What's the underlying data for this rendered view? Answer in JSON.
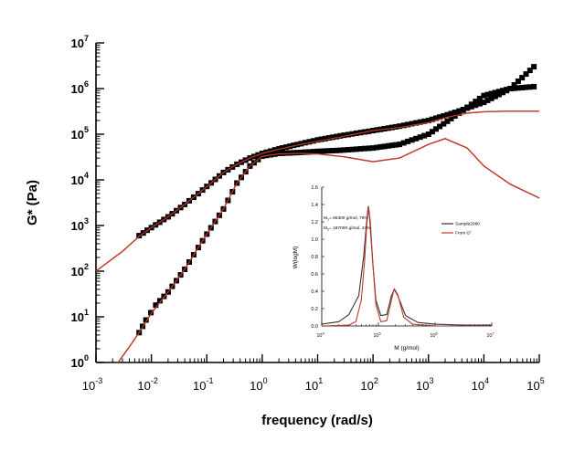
{
  "chart_data": [
    {
      "type": "scatter",
      "xlabel": "frequency (rad/s)",
      "ylabel": "G* (Pa)",
      "xscale": "log",
      "yscale": "log",
      "xlim": [
        0.001,
        100000
      ],
      "ylim": [
        1,
        10000000
      ],
      "x_ticks": [
        {
          "base": "10",
          "exp": "-3",
          "value": 0.001
        },
        {
          "base": "10",
          "exp": "-2",
          "value": 0.01
        },
        {
          "base": "10",
          "exp": "-1",
          "value": 0.1
        },
        {
          "base": "10",
          "exp": "0",
          "value": 1
        },
        {
          "base": "10",
          "exp": "1",
          "value": 10
        },
        {
          "base": "10",
          "exp": "2",
          "value": 100
        },
        {
          "base": "10",
          "exp": "3",
          "value": 1000
        },
        {
          "base": "10",
          "exp": "4",
          "value": 10000
        },
        {
          "base": "10",
          "exp": "5",
          "value": 100000
        }
      ],
      "y_ticks": [
        {
          "base": "10",
          "exp": "0",
          "value": 1
        },
        {
          "base": "10",
          "exp": "1",
          "value": 10
        },
        {
          "base": "10",
          "exp": "2",
          "value": 100
        },
        {
          "base": "10",
          "exp": "3",
          "value": 1000
        },
        {
          "base": "10",
          "exp": "4",
          "value": 10000
        },
        {
          "base": "10",
          "exp": "5",
          "value": 100000
        },
        {
          "base": "10",
          "exp": "6",
          "value": 1000000
        },
        {
          "base": "10",
          "exp": "7",
          "value": 10000000
        }
      ],
      "marker_color": "#000000",
      "fit_color": "#c0392b",
      "series": [
        {
          "kind": "markers",
          "points": [
            [
              0.006,
              600
            ],
            [
              0.01,
              900
            ],
            [
              0.02,
              1550
            ],
            [
              0.04,
              2900
            ],
            [
              0.07,
              5000
            ],
            [
              0.12,
              8600
            ],
            [
              0.2,
              14500
            ],
            [
              0.35,
              22000
            ],
            [
              0.6,
              30000
            ],
            [
              1,
              38000
            ],
            [
              2,
              48000
            ],
            [
              5,
              62000
            ],
            [
              10,
              75000
            ],
            [
              30,
              95000
            ],
            [
              100,
              120000
            ],
            [
              300,
              150000
            ],
            [
              1000,
              200000
            ],
            [
              3000,
              300000
            ],
            [
              10000,
              500000
            ],
            [
              30000,
              1000000
            ],
            [
              80000,
              3000000
            ]
          ]
        },
        {
          "kind": "markers",
          "points": [
            [
              0.006,
              4.5
            ],
            [
              0.008,
              8.5
            ],
            [
              0.012,
              18
            ],
            [
              0.02,
              35
            ],
            [
              0.04,
              110
            ],
            [
              0.07,
              330
            ],
            [
              0.1,
              650
            ],
            [
              0.2,
              2300
            ],
            [
              0.35,
              8500
            ],
            [
              0.6,
              20000
            ],
            [
              1,
              33000
            ],
            [
              2,
              38000
            ],
            [
              5,
              40000
            ],
            [
              10,
              42000
            ],
            [
              30,
              45000
            ],
            [
              100,
              50000
            ],
            [
              300,
              60000
            ],
            [
              1000,
              100000
            ],
            [
              3000,
              250000
            ],
            [
              10000,
              700000
            ],
            [
              30000,
              1000000
            ],
            [
              80000,
              1100000
            ]
          ]
        },
        {
          "kind": "line",
          "points": [
            [
              0.001,
              100
            ],
            [
              0.003,
              270
            ],
            [
              0.006,
              580
            ],
            [
              0.01,
              900
            ],
            [
              0.02,
              1550
            ],
            [
              0.04,
              2900
            ],
            [
              0.07,
              5000
            ],
            [
              0.12,
              8600
            ],
            [
              0.2,
              14500
            ],
            [
              0.35,
              22000
            ],
            [
              0.6,
              30000
            ],
            [
              1,
              38000
            ],
            [
              2,
              47000
            ],
            [
              5,
              60000
            ],
            [
              10,
              70000
            ],
            [
              30,
              90000
            ],
            [
              100,
              120000
            ],
            [
              300,
              140000
            ],
            [
              1000,
              180000
            ],
            [
              2000,
              230000
            ],
            [
              5000,
              290000
            ],
            [
              10000,
              310000
            ],
            [
              30000,
              320000
            ],
            [
              100000,
              320000
            ]
          ]
        },
        {
          "kind": "line",
          "points": [
            [
              0.0025,
              1
            ],
            [
              0.004,
              2.2
            ],
            [
              0.006,
              4.5
            ],
            [
              0.01,
              12
            ],
            [
              0.02,
              35
            ],
            [
              0.04,
              110
            ],
            [
              0.07,
              330
            ],
            [
              0.1,
              650
            ],
            [
              0.2,
              2300
            ],
            [
              0.35,
              8500
            ],
            [
              0.6,
              20000
            ],
            [
              1,
              33000
            ],
            [
              2,
              37000
            ],
            [
              5,
              38000
            ],
            [
              10,
              37000
            ],
            [
              30,
              32000
            ],
            [
              100,
              25000
            ],
            [
              300,
              30000
            ],
            [
              1000,
              60000
            ],
            [
              2000,
              80000
            ],
            [
              5000,
              50000
            ],
            [
              10000,
              20000
            ],
            [
              30000,
              8000
            ],
            [
              100000,
              4000
            ]
          ]
        }
      ]
    },
    {
      "type": "line",
      "xlabel": "M (g/mol)",
      "ylabel": "W(logM)",
      "xscale": "log",
      "xlim": [
        10000,
        10000000
      ],
      "ylim": [
        0,
        1.6
      ],
      "x_ticks": [
        {
          "base": "10",
          "exp": "4",
          "value": 10000
        },
        {
          "base": "10",
          "exp": "5",
          "value": 100000
        },
        {
          "base": "10",
          "exp": "6",
          "value": 1000000
        },
        {
          "base": "10",
          "exp": "7",
          "value": 10000000
        }
      ],
      "y_ticks": [
        "0.0",
        "0.2",
        "0.4",
        "0.6",
        "0.8",
        "1.0",
        "1.2",
        "1.4",
        "1.6"
      ],
      "annotations": [
        "M",
        "= 66300 g/mol, 76%",
        "M",
        "= 187000 g/mol, 24%"
      ],
      "annotation_subscripts": [
        "1",
        "2"
      ],
      "legend_position": "right",
      "series": [
        {
          "name": "Sample2080",
          "color": "#333333",
          "points": [
            [
              10000,
              0.02
            ],
            [
              20000,
              0.05
            ],
            [
              30000,
              0.13
            ],
            [
              45000,
              0.35
            ],
            [
              55000,
              0.8
            ],
            [
              62000,
              1.2
            ],
            [
              66000,
              1.37
            ],
            [
              70000,
              1.25
            ],
            [
              78000,
              0.8
            ],
            [
              90000,
              0.3
            ],
            [
              110000,
              0.12
            ],
            [
              140000,
              0.13
            ],
            [
              170000,
              0.35
            ],
            [
              190000,
              0.42
            ],
            [
              220000,
              0.35
            ],
            [
              300000,
              0.12
            ],
            [
              500000,
              0.04
            ],
            [
              1000000,
              0.02
            ],
            [
              3000000,
              0.01
            ],
            [
              10000000,
              0.01
            ]
          ]
        },
        {
          "name": "From G\"",
          "color": "#c0392b",
          "points": [
            [
              10000,
              0.0
            ],
            [
              30000,
              0.01
            ],
            [
              40000,
              0.05
            ],
            [
              50000,
              0.3
            ],
            [
              57000,
              0.75
            ],
            [
              62000,
              1.15
            ],
            [
              67000,
              1.38
            ],
            [
              72000,
              1.2
            ],
            [
              80000,
              0.7
            ],
            [
              90000,
              0.25
            ],
            [
              110000,
              0.05
            ],
            [
              140000,
              0.06
            ],
            [
              170000,
              0.3
            ],
            [
              190000,
              0.43
            ],
            [
              220000,
              0.36
            ],
            [
              280000,
              0.1
            ],
            [
              400000,
              0.02
            ],
            [
              1000000,
              0.0
            ],
            [
              10000000,
              0.0
            ]
          ]
        }
      ]
    }
  ]
}
